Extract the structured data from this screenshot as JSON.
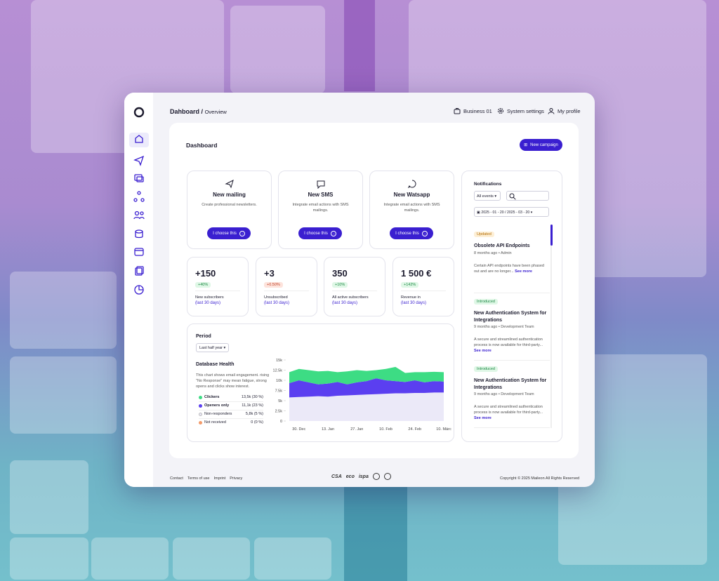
{
  "header": {
    "title": "Dahboard",
    "separator": "/",
    "current": "Overview",
    "menu": [
      "Business 01",
      "System settings",
      "My profile"
    ]
  },
  "dashboard": {
    "title": "Dashboard",
    "button": "New campaign"
  },
  "channels": [
    {
      "title": "New mailing",
      "description": "Create professional newsletters.",
      "button": "I choose this"
    },
    {
      "title": "New SMS",
      "description": "Integrate email actions with SMS mailings.",
      "button": "I choose this"
    },
    {
      "title": "New Watsapp",
      "description": "Integrate email actions with SMS mailings.",
      "button": "I choose this"
    }
  ],
  "stats": [
    {
      "value": "+150",
      "change": "+40%",
      "label": "New subscribers",
      "period": "(last 30 days)"
    },
    {
      "value": "+3",
      "change": "+0.50%",
      "label": "Unsubscribed",
      "period": "(last 30 days)"
    },
    {
      "value": "350",
      "change": "+10%",
      "label": "All active subscribers",
      "period": "(last 30 days)"
    },
    {
      "value": "1 500 €",
      "change": "+142%",
      "label": "Revenue in",
      "period": "(last 30 days)"
    }
  ],
  "database_health": {
    "period_label": "Period",
    "period": "Last half year",
    "title": "Database Health",
    "description": "This chart shows email engagement. rising \"No Response\" may mean fatigue, strong opens and clicks show interest.",
    "legend": [
      {
        "name": "Clickers",
        "value": "13,5k (30 %)",
        "color": "#3ddc84",
        "values": [
          2700,
          2800,
          3000,
          3200,
          3100,
          2400,
          3200,
          3000,
          2500,
          2000,
          2800,
          3500,
          2200,
          2000,
          2500,
          2300,
          2300
        ]
      },
      {
        "name": "Openers only",
        "value": "11,1k (23 %)",
        "color": "#5b3ff0",
        "values": [
          3500,
          4100,
          3500,
          2900,
          3200,
          3400,
          2700,
          3100,
          3300,
          3900,
          3300,
          3000,
          2800,
          3100,
          2600,
          2800,
          2700
        ]
      },
      {
        "name": "Non-responders",
        "value": "5,8k (5 %)",
        "color": "#ebe9f8",
        "values": [
          5800,
          5900,
          6000,
          6100,
          6000,
          6200,
          6300,
          6400,
          6500,
          6600,
          6700,
          6800,
          6800,
          6900,
          6900,
          7000,
          7000
        ]
      },
      {
        "name": "Not received",
        "value": "0 (0 %)",
        "color": "#f39b6b"
      }
    ],
    "ylim": [
      0,
      15000
    ],
    "yticks": [
      0,
      {
        "value": 2500,
        "label": "2.5k"
      },
      {
        "value": 5000,
        "label": "5k"
      },
      {
        "value": 7500,
        "label": "7.5k"
      },
      {
        "value": 10000,
        "label": "10k"
      },
      {
        "value": 12500,
        "label": "12.5k"
      },
      {
        "value": 15000,
        "label": "15k"
      }
    ],
    "x": [
      null,
      "30. Dec",
      null,
      null,
      "13. Jan",
      null,
      null,
      "27. Jan",
      null,
      null,
      "10. Feb",
      null,
      null,
      "24. Feb",
      null,
      null,
      "10. Márc"
    ]
  },
  "notifications": {
    "title": "Notifications",
    "filter": "All events",
    "date_range": "2025 - 01 - 20 / 2025 - 03 - 20",
    "items": [
      {
        "tag": "Updated",
        "title": "Obsolete API Endpoints",
        "meta": "8 months ago • Admin",
        "text": "Certain API endpoints have been phased out and are no longer...",
        "link": "See more"
      },
      {
        "tag": "Introduced",
        "title": "New Authentication System for Integrations",
        "meta": "9 months ago • Development Team",
        "text": "A secure and streamlined authentication process is now available for third-party...",
        "link": "See more"
      },
      {
        "tag": "Introduced",
        "title": "New Authentication System for Integrations",
        "meta": "9 months ago • Development Team",
        "text": "A secure and streamlined authentication process is now available for third-party...",
        "link": "See more"
      }
    ]
  },
  "footer": {
    "links": [
      "Contact",
      "Terms of use",
      "Imprint",
      "Privacy"
    ],
    "badges": [
      "CSA",
      "eco",
      "ispa"
    ],
    "copyright": "Copyright © 2025 Maileon All Rights Reserved"
  }
}
